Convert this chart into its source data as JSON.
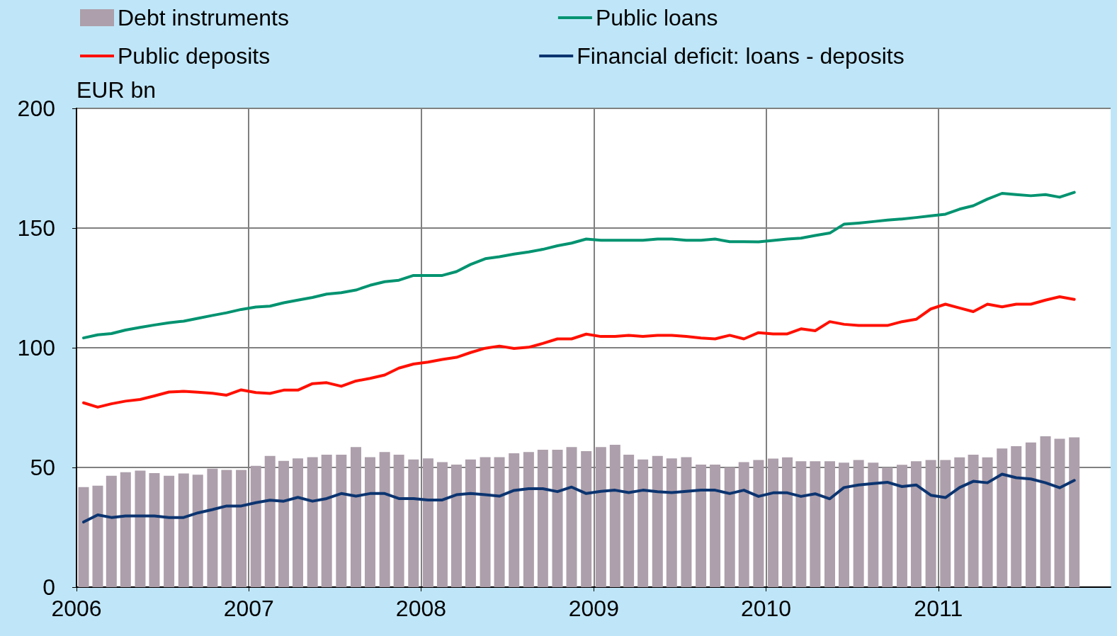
{
  "chart_data": {
    "type": "bar",
    "ylabel": "EUR bn",
    "x": [
      "2006-01-16",
      "2006-02-15",
      "2006-03-16",
      "2006-04-15",
      "2006-05-16",
      "2006-06-15",
      "2006-07-16",
      "2006-08-16",
      "2006-09-15",
      "2006-10-16",
      "2006-11-15",
      "2006-12-16",
      "2007-01-16",
      "2007-02-15",
      "2007-03-16",
      "2007-04-15",
      "2007-05-16",
      "2007-06-15",
      "2007-07-16",
      "2007-08-16",
      "2007-09-15",
      "2007-10-16",
      "2007-11-15",
      "2007-12-16",
      "2008-01-16",
      "2008-02-15",
      "2008-03-16",
      "2008-04-15",
      "2008-05-16",
      "2008-06-15",
      "2008-07-16",
      "2008-08-16",
      "2008-09-15",
      "2008-10-16",
      "2008-11-15",
      "2008-12-16",
      "2009-01-16",
      "2009-02-15",
      "2009-03-16",
      "2009-04-15",
      "2009-05-16",
      "2009-06-15",
      "2009-07-16",
      "2009-08-16",
      "2009-09-15",
      "2009-10-16",
      "2009-11-15",
      "2009-12-16",
      "2010-01-16",
      "2010-02-15",
      "2010-03-16",
      "2010-04-15",
      "2010-05-16",
      "2010-06-15",
      "2010-07-16",
      "2010-08-16",
      "2010-09-15",
      "2010-10-16",
      "2010-11-15",
      "2010-12-16",
      "2011-01-16",
      "2011-02-15",
      "2011-03-16",
      "2011-04-15",
      "2011-05-16",
      "2011-06-15",
      "2011-07-16",
      "2011-08-16",
      "2011-09-15",
      "2011-10-16"
    ],
    "series": [
      {
        "name": "Debt instruments",
        "color": "#ad9fab",
        "values": [
          41.8,
          42.4,
          46.5,
          48,
          48.7,
          47.6,
          46.5,
          47.5,
          47,
          49.5,
          49,
          49,
          50.7,
          54.8,
          52.7,
          53.8,
          54.3,
          55.3,
          55.3,
          58.5,
          54.3,
          56.4,
          55.3,
          53.3,
          53.8,
          52.2,
          51.2,
          53.3,
          54.3,
          54.3,
          55.9,
          56.4,
          57.4,
          57.4,
          58.5,
          56.8,
          58.5,
          59.5,
          55.3,
          53.3,
          54.8,
          53.8,
          54.3,
          51.2,
          51.2,
          50.1,
          52.2,
          53.1,
          53.7,
          54.2,
          52.6,
          52.6,
          52.6,
          52,
          53.1,
          52,
          50,
          51.1,
          52.6,
          53.1,
          53.1,
          54.2,
          55.3,
          54.2,
          57.9,
          58.9,
          60.4,
          63,
          62,
          62.6
        ]
      },
      {
        "name": "Public loans",
        "type": "line",
        "color": "#009370",
        "values": [
          104.1,
          105.4,
          105.9,
          107.4,
          108.5,
          109.5,
          110.4,
          111.1,
          112.3,
          113.5,
          114.6,
          116,
          117,
          117.4,
          118.8,
          119.9,
          121,
          122.4,
          123,
          124.1,
          126.1,
          127.6,
          128.2,
          130.2,
          130.2,
          130.2,
          131.8,
          134.8,
          137.2,
          138,
          139.1,
          140,
          141.1,
          142.6,
          143.7,
          145.4,
          144.9,
          144.9,
          144.9,
          144.9,
          145.4,
          145.4,
          144.9,
          144.9,
          145.4,
          144.3,
          144.3,
          144.2,
          144.8,
          145.4,
          145.8,
          146.9,
          147.9,
          151.6,
          152.1,
          152.7,
          153.3,
          153.8,
          154.4,
          155.1,
          155.8,
          157.9,
          159.3,
          162.1,
          164.5,
          164,
          163.5,
          164,
          162.9,
          164.9
        ]
      },
      {
        "name": "Public deposits",
        "type": "line",
        "color": "#ff1000",
        "values": [
          77,
          75.2,
          76.6,
          77.7,
          78.4,
          79.9,
          81.5,
          81.8,
          81.4,
          81,
          80.2,
          82.4,
          81.3,
          80.9,
          82.3,
          82.3,
          85,
          85.4,
          83.9,
          86.1,
          87.2,
          88.6,
          91.5,
          93.2,
          94,
          95.1,
          96,
          98,
          99.8,
          100.7,
          99.7,
          100.2,
          101.8,
          103.7,
          103.7,
          105.7,
          104.7,
          104.7,
          105.2,
          104.7,
          105.2,
          105.2,
          104.7,
          104.1,
          103.7,
          105.2,
          103.7,
          106.3,
          105.8,
          105.8,
          107.9,
          107.1,
          110.9,
          109.8,
          109.3,
          109.3,
          109.3,
          110.9,
          111.9,
          116.2,
          118.2,
          116.6,
          115.1,
          118.2,
          117.1,
          118.2,
          118.2,
          119.9,
          121.3,
          120.2
        ]
      },
      {
        "name": "Financial deficit: loans - deposits",
        "type": "line",
        "color": "#0b3470",
        "values": [
          27.2,
          30.2,
          29.1,
          29.7,
          29.7,
          29.7,
          29.1,
          29.1,
          31,
          32.4,
          33.9,
          33.9,
          35.3,
          36.3,
          35.9,
          37.5,
          35.9,
          37,
          39.1,
          38,
          39.1,
          39.1,
          37,
          37,
          36.4,
          36.4,
          38.6,
          39.1,
          38.6,
          38,
          40.4,
          41.1,
          41.1,
          39.9,
          41.8,
          39.1,
          40,
          40.5,
          39.5,
          40.5,
          39.9,
          39.5,
          40,
          40.5,
          40.5,
          39.1,
          40.5,
          37.9,
          39.4,
          39.4,
          37.9,
          39,
          36.9,
          41.6,
          42.7,
          43.3,
          43.8,
          42,
          42.7,
          38.4,
          37.4,
          41.6,
          44.2,
          43.6,
          47.2,
          45.7,
          45.2,
          43.6,
          41.5,
          44.6
        ]
      }
    ],
    "xlim": [
      "2006",
      "2012"
    ],
    "xticks": [
      "2006",
      "2007",
      "2008",
      "2009",
      "2010",
      "2011"
    ],
    "ylim": [
      0,
      200
    ],
    "yticks": [
      0,
      50,
      100,
      150,
      200
    ],
    "grid": true,
    "legend": "top",
    "marker": "none",
    "line_style": "solid"
  }
}
